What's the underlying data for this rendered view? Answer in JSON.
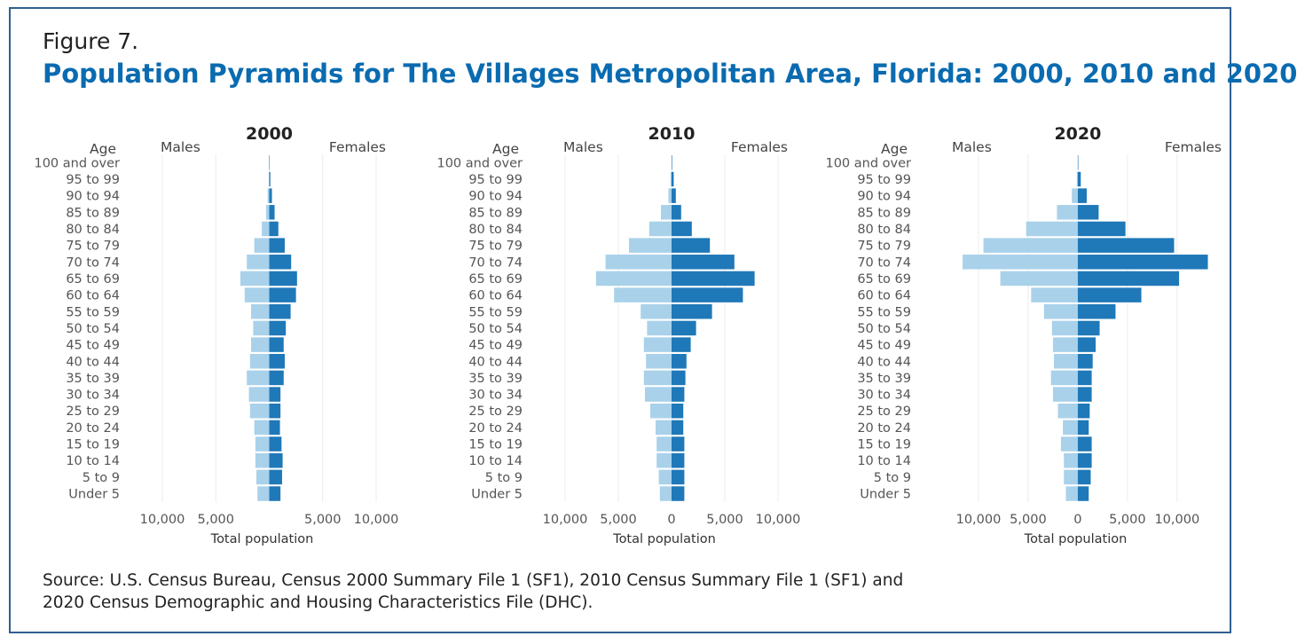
{
  "figure_label": "Figure 7.",
  "title": "Population Pyramids for The Villages Metropolitan Area, Florida: 2000, 2010 and 2020",
  "source_lines": [
    "Source: U.S. Census Bureau, Census 2000 Summary File 1 (SF1), 2010 Census Summary File 1 (SF1) and",
    "2020 Census Demographic and Housing Characteristics File (DHC)."
  ],
  "colors": {
    "males": "#a9d1ea",
    "females": "#1f78b8",
    "title": "#0a6bb0",
    "border": "#2f5f8f"
  },
  "chart_data": [
    {
      "type": "bar",
      "orientation": "horizontal-pyramid",
      "title": "2000",
      "age_label": "Age",
      "left_label": "Males",
      "right_label": "Females",
      "xlabel": "Total population",
      "xlim": [
        -10000,
        10000
      ],
      "xticks": [
        -10000,
        -5000,
        0,
        5000,
        10000
      ],
      "xtick_labels": [
        "10,000",
        "5,000",
        "",
        "5,000",
        "10,000"
      ],
      "categories": [
        "100 and over",
        "95 to 99",
        "90 to 94",
        "85 to 89",
        "80 to 84",
        "75 to 79",
        "70 to 74",
        "65 to 69",
        "60 to 64",
        "55 to 59",
        "50 to 54",
        "45 to 49",
        "40 to 44",
        "35 to 39",
        "30 to 34",
        "25 to 29",
        "20 to 24",
        "15 to 19",
        "10 to 14",
        "5 to 9",
        "Under 5"
      ],
      "series": [
        {
          "name": "Males",
          "values": [
            10,
            40,
            150,
            300,
            700,
            1400,
            2100,
            2700,
            2300,
            1700,
            1500,
            1700,
            1800,
            2100,
            1900,
            1800,
            1400,
            1300,
            1300,
            1200,
            1100
          ]
        },
        {
          "name": "Females",
          "values": [
            30,
            100,
            250,
            500,
            850,
            1450,
            2050,
            2600,
            2500,
            2000,
            1550,
            1350,
            1450,
            1350,
            1050,
            1050,
            1000,
            1150,
            1250,
            1200,
            1050
          ]
        }
      ]
    },
    {
      "type": "bar",
      "orientation": "horizontal-pyramid",
      "title": "2010",
      "age_label": "Age",
      "left_label": "Males",
      "right_label": "Females",
      "xlabel": "Total population",
      "xlim": [
        -10000,
        10000
      ],
      "xticks": [
        -10000,
        -5000,
        0,
        5000,
        10000
      ],
      "xtick_labels": [
        "10,000",
        "5,000",
        "0",
        "5,000",
        "10,000"
      ],
      "categories": [
        "100 and over",
        "95 to 99",
        "90 to 94",
        "85 to 89",
        "80 to 84",
        "75 to 79",
        "70 to 74",
        "65 to 69",
        "60 to 64",
        "55 to 59",
        "50 to 54",
        "45 to 49",
        "40 to 44",
        "35 to 39",
        "30 to 34",
        "25 to 29",
        "20 to 24",
        "15 to 19",
        "10 to 14",
        "5 to 9",
        "Under 5"
      ],
      "series": [
        {
          "name": "Males",
          "values": [
            20,
            100,
            300,
            1000,
            2100,
            4000,
            6200,
            7100,
            5400,
            2900,
            2300,
            2600,
            2400,
            2600,
            2500,
            2000,
            1500,
            1400,
            1400,
            1200,
            1100
          ]
        },
        {
          "name": "Females",
          "values": [
            50,
            200,
            400,
            900,
            1900,
            3600,
            5900,
            7800,
            6700,
            3800,
            2300,
            1800,
            1400,
            1300,
            1200,
            1100,
            1100,
            1200,
            1200,
            1200,
            1200
          ]
        }
      ]
    },
    {
      "type": "bar",
      "orientation": "horizontal-pyramid",
      "title": "2020",
      "age_label": "Age",
      "left_label": "Males",
      "right_label": "Females",
      "xlabel": "Total population",
      "xlim": [
        -12500,
        13500
      ],
      "xticks": [
        -10000,
        -5000,
        0,
        5000,
        10000
      ],
      "xtick_labels": [
        "10,000",
        "5,000",
        "0",
        "5,000",
        "10,000"
      ],
      "categories": [
        "100 and over",
        "95 to 99",
        "90 to 94",
        "85 to 89",
        "80 to 84",
        "75 to 79",
        "70 to 74",
        "65 to 69",
        "60 to 64",
        "55 to 59",
        "50 to 54",
        "45 to 49",
        "40 to 44",
        "35 to 39",
        "30 to 34",
        "25 to 29",
        "20 to 24",
        "15 to 19",
        "10 to 14",
        "5 to 9",
        "Under 5"
      ],
      "series": [
        {
          "name": "Males",
          "values": [
            10,
            100,
            600,
            2100,
            5200,
            9500,
            11600,
            7800,
            4700,
            3400,
            2600,
            2500,
            2400,
            2700,
            2500,
            2000,
            1500,
            1700,
            1400,
            1400,
            1200
          ]
        },
        {
          "name": "Females",
          "values": [
            50,
            300,
            900,
            2100,
            4800,
            9700,
            13100,
            10200,
            6400,
            3800,
            2200,
            1800,
            1500,
            1400,
            1400,
            1200,
            1100,
            1400,
            1400,
            1300,
            1100
          ]
        }
      ]
    }
  ]
}
